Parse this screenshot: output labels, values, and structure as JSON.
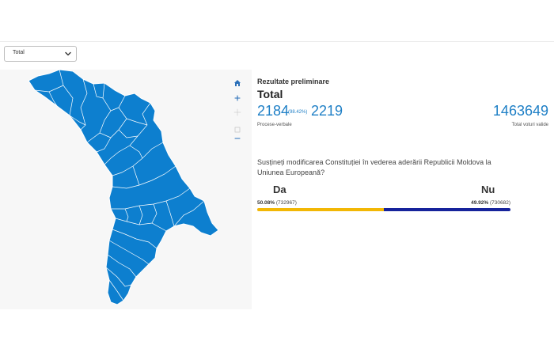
{
  "filter": {
    "selected": "Total"
  },
  "map": {
    "fill_color": "#0d7fcf",
    "border_color": "#ffffff",
    "controls": [
      "home-icon",
      "zoom-in-icon",
      "select-area-icon",
      "zoom-out-icon"
    ]
  },
  "results": {
    "title": "Rezultate preliminare",
    "region": "Total",
    "counted": "2184",
    "counted_percent": "(98.42%)",
    "total": "2219",
    "pv_label": "Procese-verbale",
    "votes_valid": "1463649",
    "votes_valid_label": "Total voturi valide",
    "accent_color": "#1e7fc6"
  },
  "question": "Susțineți modificarea Constituției în vederea aderării Republicii Moldova la Uniunea Europeană?",
  "options": {
    "da": {
      "label": "Da",
      "percent": "50.08%",
      "votes": "(732967)",
      "share": 50.08,
      "color": "#f2b705"
    },
    "nu": {
      "label": "Nu",
      "percent": "49.92%",
      "votes": "(730682)",
      "share": 49.92,
      "color": "#16239b"
    }
  }
}
